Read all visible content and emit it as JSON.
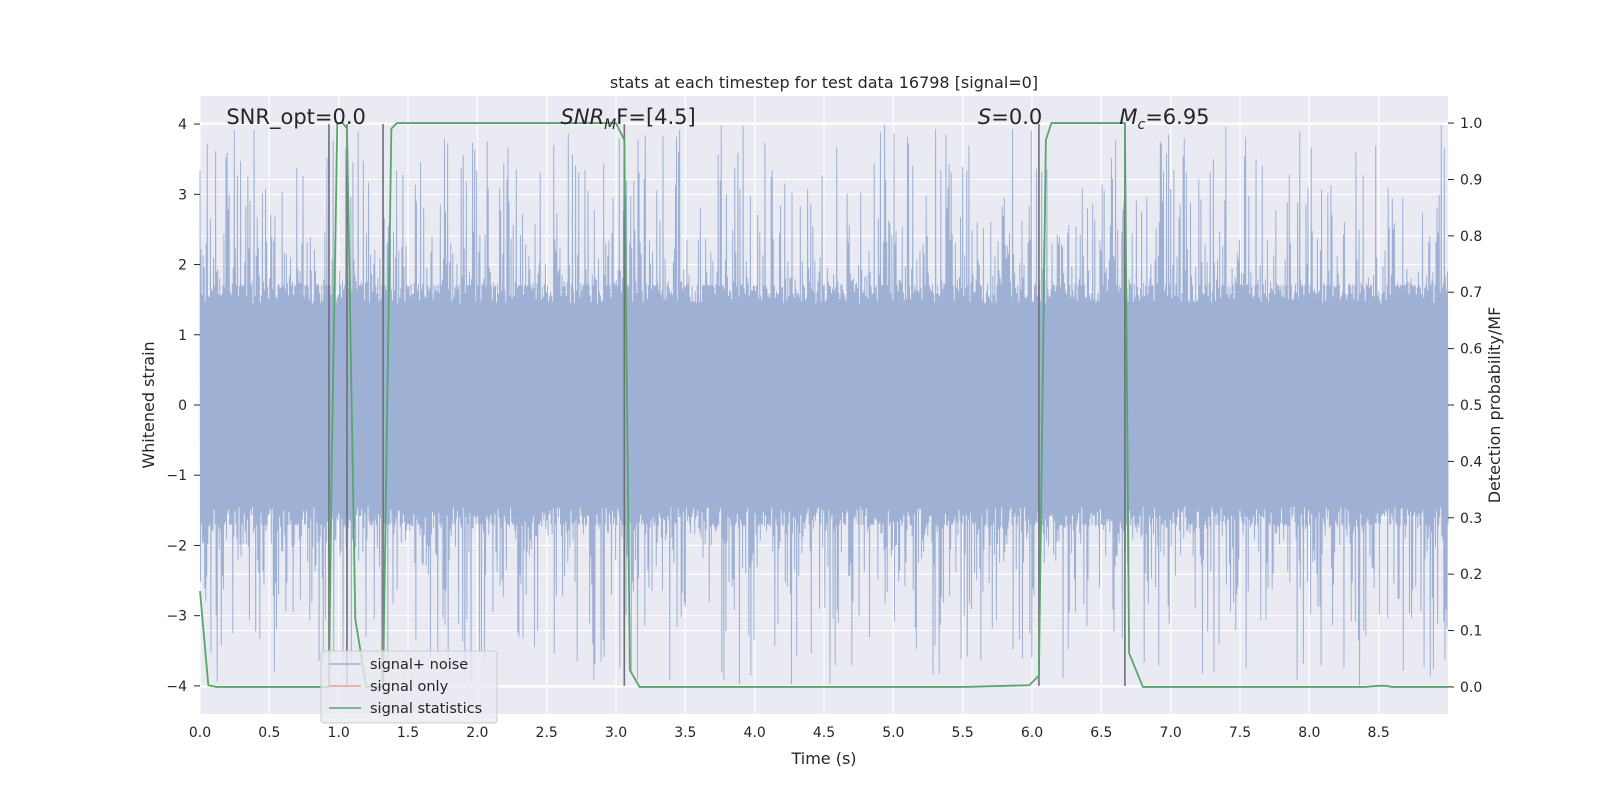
{
  "chart_data": {
    "type": "line",
    "title": "stats at each timestep for test data 16798 [signal=0]",
    "xlabel": "Time (s)",
    "ylabel": "Whitened strain",
    "y2label": "Detection probability/MF",
    "xlim": [
      0,
      9.0
    ],
    "ylim": [
      -4.4,
      4.4
    ],
    "y2lim": [
      -0.048,
      1.048
    ],
    "x_ticks": [
      0.0,
      0.5,
      1.0,
      1.5,
      2.0,
      2.5,
      3.0,
      3.5,
      4.0,
      4.5,
      5.0,
      5.5,
      6.0,
      6.5,
      7.0,
      7.5,
      8.0,
      8.5
    ],
    "x_tick_labels": [
      "0.0",
      "0.5",
      "1.0",
      "1.5",
      "2.0",
      "2.5",
      "3.0",
      "3.5",
      "4.0",
      "4.5",
      "5.0",
      "5.5",
      "6.0",
      "6.5",
      "7.0",
      "7.5",
      "8.0",
      "8.5"
    ],
    "y_ticks": [
      4,
      3,
      2,
      1,
      0,
      -1,
      -2,
      -3,
      -4
    ],
    "y_tick_labels": [
      "4",
      "3",
      "2",
      "1",
      "0",
      "−1",
      "−2",
      "−3",
      "−4"
    ],
    "y2_ticks": [
      1.0,
      0.9,
      0.8,
      0.7,
      0.6,
      0.5,
      0.4,
      0.3,
      0.2,
      0.1,
      0.0
    ],
    "y2_tick_labels": [
      "1.0",
      "0.9",
      "0.8",
      "0.7",
      "0.6",
      "0.5",
      "0.4",
      "0.3",
      "0.2",
      "0.1",
      "0.0"
    ],
    "grid": true,
    "legend_position": "lower-left",
    "colors": {
      "background": "#eaeaf2",
      "grid": "#ffffff",
      "noise": "#9aaed3",
      "signal_only": "#e8a48c",
      "statistics": "#55a868",
      "vlines": "#6e6e76"
    },
    "annotations": [
      {
        "x": 0.19,
        "text": "SNR_opt=0.0"
      },
      {
        "x": 2.6,
        "text_italic": "SNR",
        "text_sub": "M",
        "text_rest": "F=[4.5]"
      },
      {
        "x": 5.61,
        "text_italic": "S",
        "text_rest": "=0.0"
      },
      {
        "x": 6.63,
        "text_italic": "M",
        "text_sub": "c",
        "text_rest": "=6.95"
      }
    ],
    "vertical_lines_x": [
      0.93,
      1.06,
      1.32,
      3.06,
      6.05,
      6.67
    ],
    "series": [
      {
        "name": "signal+ noise",
        "kind": "noise",
        "amplitude_typical": 1.7,
        "amplitude_max": 4.0
      },
      {
        "name": "signal only",
        "kind": "line",
        "x": [],
        "y": []
      },
      {
        "name": "signal statistics",
        "kind": "line",
        "axis": "right",
        "x": [
          0.0,
          0.06,
          0.12,
          0.3,
          0.6,
          0.9,
          0.93,
          0.95,
          0.99,
          1.03,
          1.06,
          1.12,
          1.2,
          1.3,
          1.32,
          1.38,
          1.42,
          1.5,
          2.0,
          2.5,
          2.9,
          3.0,
          3.06,
          3.1,
          3.17,
          3.5,
          4.0,
          5.0,
          5.5,
          5.98,
          6.05,
          6.1,
          6.14,
          6.2,
          6.5,
          6.67,
          6.7,
          6.8,
          7.0,
          8.0,
          8.4,
          8.5,
          8.55,
          8.6,
          9.0
        ],
        "y": [
          0.17,
          0.003,
          0.0,
          0.0,
          0.0,
          0.0,
          0.0,
          0.4,
          1.0,
          1.0,
          0.99,
          0.12,
          0.0,
          0.0,
          0.0,
          0.99,
          1.0,
          1.0,
          1.0,
          1.0,
          1.0,
          1.0,
          0.97,
          0.03,
          0.0,
          0.0,
          0.0,
          0.0,
          0.0,
          0.003,
          0.02,
          0.97,
          1.0,
          1.0,
          1.0,
          1.0,
          0.06,
          0.0,
          0.0,
          0.0,
          0.0,
          0.002,
          0.002,
          0.0,
          0.0
        ]
      }
    ]
  }
}
